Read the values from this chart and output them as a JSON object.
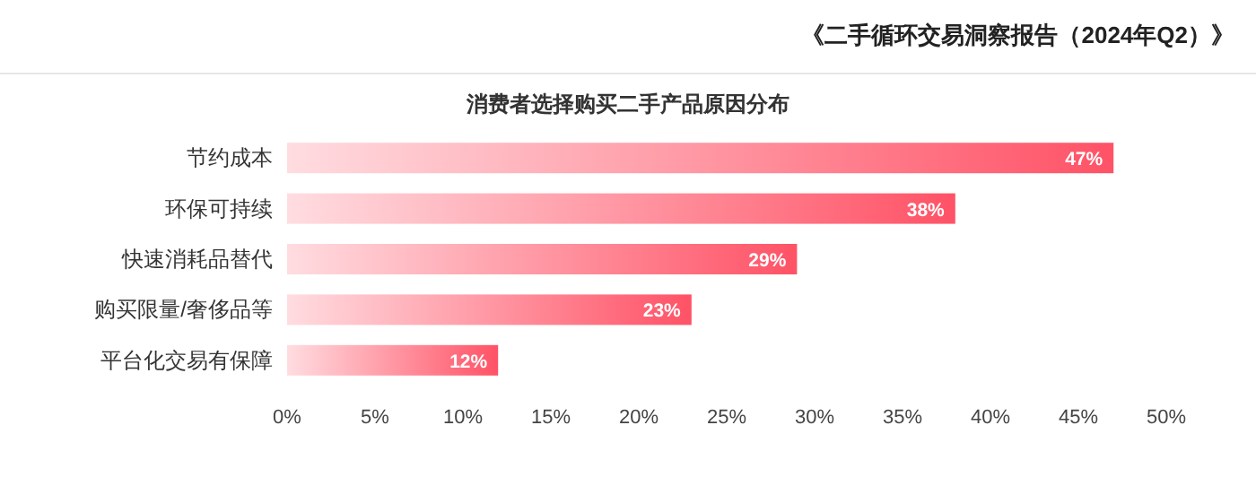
{
  "chart_data": {
    "type": "bar",
    "orientation": "horizontal",
    "title": "消费者选择购买二手产品原因分布",
    "subtitle": "《二手循环交易洞察报告（2024年Q2）》",
    "categories": [
      "节约成本",
      "环保可持续",
      "快速消耗品替代",
      "购买限量/奢侈品等",
      "平台化交易有保障"
    ],
    "values": [
      47,
      38,
      29,
      23,
      12
    ],
    "value_labels": [
      "47%",
      "38%",
      "29%",
      "23%",
      "12%"
    ],
    "color": "#ff5266",
    "xlim": [
      0,
      50
    ],
    "xticks": [
      {
        "value": 0,
        "label": "0%"
      },
      {
        "value": 5,
        "label": "5%"
      },
      {
        "value": 10,
        "label": "10%"
      },
      {
        "value": 15,
        "label": "15%"
      },
      {
        "value": 20,
        "label": "20%"
      },
      {
        "value": 25,
        "label": "25%"
      },
      {
        "value": 30,
        "label": "30%"
      },
      {
        "value": 35,
        "label": "35%"
      },
      {
        "value": 40,
        "label": "40%"
      },
      {
        "value": 45,
        "label": "45%"
      },
      {
        "value": 50,
        "label": "50%"
      }
    ],
    "data_labels": false
  }
}
